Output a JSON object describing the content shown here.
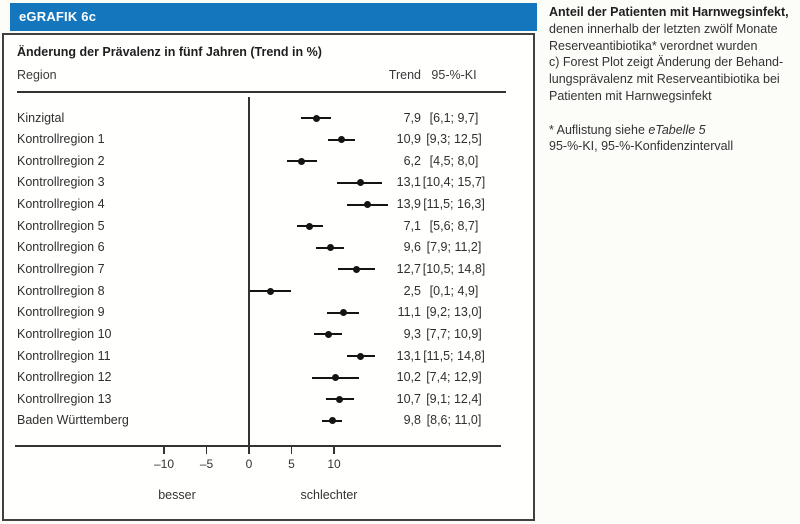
{
  "figure": {
    "header": "eGRAFIK 6c",
    "title": "Änderung der Prävalenz in fünf Jahren (Trend in %)",
    "columns": {
      "region": "Region",
      "trend": "Trend",
      "ci": "95-%-KI"
    }
  },
  "chart_data": {
    "type": "forest",
    "title": "Änderung der Prävalenz in fünf Jahren (Trend in %)",
    "xlim": [
      -13.5,
      18.5
    ],
    "x_ticks": [
      {
        "value": -10,
        "label": "–10"
      },
      {
        "value": -5,
        "label": "–5"
      },
      {
        "value": 0,
        "label": "0"
      },
      {
        "value": 5,
        "label": "5"
      },
      {
        "value": 10,
        "label": "10"
      }
    ],
    "direction_labels": {
      "left": "besser",
      "right": "schlechter"
    },
    "rows": [
      {
        "region": "Kinzigtal",
        "trend": 7.9,
        "trend_label": "7,9",
        "ci_lo": 6.1,
        "ci_hi": 9.7,
        "ci_label": "[6,1; 9,7]"
      },
      {
        "region": "Kontrollregion 1",
        "trend": 10.9,
        "trend_label": "10,9",
        "ci_lo": 9.3,
        "ci_hi": 12.5,
        "ci_label": "[9,3; 12,5]"
      },
      {
        "region": "Kontrollregion 2",
        "trend": 6.2,
        "trend_label": "6,2",
        "ci_lo": 4.5,
        "ci_hi": 8.0,
        "ci_label": "[4,5; 8,0]"
      },
      {
        "region": "Kontrollregion 3",
        "trend": 13.1,
        "trend_label": "13,1",
        "ci_lo": 10.4,
        "ci_hi": 15.7,
        "ci_label": "[10,4; 15,7]"
      },
      {
        "region": "Kontrollregion 4",
        "trend": 13.9,
        "trend_label": "13,9",
        "ci_lo": 11.5,
        "ci_hi": 16.3,
        "ci_label": "[11,5; 16,3]"
      },
      {
        "region": "Kontrollregion 5",
        "trend": 7.1,
        "trend_label": "7,1",
        "ci_lo": 5.6,
        "ci_hi": 8.7,
        "ci_label": "[5,6; 8,7]"
      },
      {
        "region": "Kontrollregion 6",
        "trend": 9.6,
        "trend_label": "9,6",
        "ci_lo": 7.9,
        "ci_hi": 11.2,
        "ci_label": "[7,9; 11,2]"
      },
      {
        "region": "Kontrollregion 7",
        "trend": 12.7,
        "trend_label": "12,7",
        "ci_lo": 10.5,
        "ci_hi": 14.8,
        "ci_label": "[10,5; 14,8]"
      },
      {
        "region": "Kontrollregion 8",
        "trend": 2.5,
        "trend_label": "2,5",
        "ci_lo": 0.1,
        "ci_hi": 4.9,
        "ci_label": "[0,1; 4,9]"
      },
      {
        "region": "Kontrollregion 9",
        "trend": 11.1,
        "trend_label": "11,1",
        "ci_lo": 9.2,
        "ci_hi": 13.0,
        "ci_label": "[9,2; 13,0]"
      },
      {
        "region": "Kontrollregion 10",
        "trend": 9.3,
        "trend_label": "9,3",
        "ci_lo": 7.7,
        "ci_hi": 10.9,
        "ci_label": "[7,7; 10,9]"
      },
      {
        "region": "Kontrollregion 11",
        "trend": 13.1,
        "trend_label": "13,1",
        "ci_lo": 11.5,
        "ci_hi": 14.8,
        "ci_label": "[11,5; 14,8]"
      },
      {
        "region": "Kontrollregion 12",
        "trend": 10.2,
        "trend_label": "10,2",
        "ci_lo": 7.4,
        "ci_hi": 12.9,
        "ci_label": "[7,4; 12,9]"
      },
      {
        "region": "Kontrollregion 13",
        "trend": 10.7,
        "trend_label": "10,7",
        "ci_lo": 9.1,
        "ci_hi": 12.4,
        "ci_label": "[9,1; 12,4]"
      },
      {
        "region": "Baden Württemberg",
        "trend": 9.8,
        "trend_label": "9,8",
        "ci_lo": 8.6,
        "ci_hi": 11.0,
        "ci_label": "[8,6; 11,0]"
      }
    ]
  },
  "sidebar": {
    "heading": "Anteil der Patienten mit Harnwegsinfekt,",
    "lines": [
      "denen innerhalb der letzten zwölf Monate",
      "Reserveantibiotika* verordnet wurden",
      "c) Forest Plot zeigt Änderung der Behand-",
      "lungsprävalenz mit Reserveantibiotika bei",
      "Patienten mit Harnwegsinfekt"
    ],
    "footnote_prefix": "* Auflistung siehe ",
    "footnote_italic": "eTabelle 5",
    "abbrev_line": "95-%-KI, 95-%-Konfidenzintervall"
  },
  "colors": {
    "accent_blue": "#1477BE",
    "marker_black": "#141414",
    "axis_gray": "#333333"
  }
}
